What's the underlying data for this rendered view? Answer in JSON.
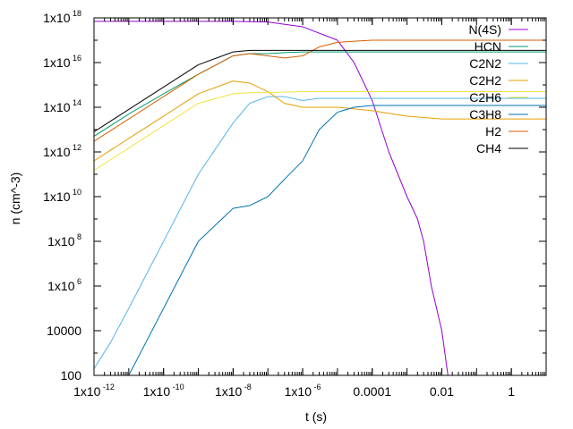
{
  "chart_data": {
    "type": "line",
    "title": "",
    "xlabel": "t (s)",
    "ylabel": "n (cm^-3)",
    "x_scale": "log",
    "y_scale": "log",
    "xlim": [
      1e-12,
      10
    ],
    "ylim": [
      100,
      1e+18
    ],
    "grid": false,
    "legend_position": "top-right",
    "x_ticks": [
      {
        "value": 1e-12,
        "base": "1x10",
        "exp": "-12"
      },
      {
        "value": 1e-10,
        "base": "1x10",
        "exp": "-10"
      },
      {
        "value": 1e-08,
        "base": "1x10",
        "exp": "-8"
      },
      {
        "value": 1e-06,
        "base": "1x10",
        "exp": "-6"
      },
      {
        "value": 0.0001,
        "base": "0.0001",
        "exp": ""
      },
      {
        "value": 0.01,
        "base": "0.01",
        "exp": ""
      },
      {
        "value": 1,
        "base": "1",
        "exp": ""
      }
    ],
    "y_ticks": [
      {
        "value": 1e+18,
        "base": "1x10",
        "exp": "18"
      },
      {
        "value": 1e+16,
        "base": "1x10",
        "exp": "16"
      },
      {
        "value": 100000000000000.0,
        "base": "1x10",
        "exp": "14"
      },
      {
        "value": 1000000000000.0,
        "base": "1x10",
        "exp": "12"
      },
      {
        "value": 10000000000.0,
        "base": "1x10",
        "exp": "10"
      },
      {
        "value": 100000000.0,
        "base": "1x10",
        "exp": "8"
      },
      {
        "value": 1000000.0,
        "base": "1x10",
        "exp": "6"
      },
      {
        "value": 10000,
        "base": "10000",
        "exp": ""
      },
      {
        "value": 100,
        "base": "100",
        "exp": ""
      }
    ],
    "series": [
      {
        "name": "N(4S)",
        "color": "#9400d3",
        "x": [
          1e-12,
          1e-10,
          1e-08,
          1e-07,
          1e-06,
          1e-05,
          3e-05,
          0.0001,
          0.0003,
          0.001,
          0.002,
          0.003,
          0.005,
          0.01,
          0.015
        ],
        "y": [
          7e+17,
          7e+17,
          7e+17,
          6.5e+17,
          4e+17,
          1e+17,
          1e+16,
          200000000000000.0,
          1000000000000.0,
          10000000000.0,
          1000000000.0,
          100000000.0,
          1000000.0,
          10000.0,
          100
        ]
      },
      {
        "name": "HCN",
        "color": "#009e73",
        "x": [
          1e-12,
          1e-11,
          1e-10,
          1e-09,
          1e-08,
          3e-08,
          1e-07,
          3e-07,
          1e-06,
          3e-06,
          1e-05,
          0.001,
          0.1,
          10
        ],
        "y": [
          5000000000000.0,
          50000000000000.0,
          400000000000000.0,
          3000000000000000.0,
          2e+16,
          2.5e+16,
          2.5e+16,
          2.8e+16,
          3e+16,
          3e+16,
          3e+16,
          3e+16,
          3e+16,
          3e+16
        ]
      },
      {
        "name": "C2N2",
        "color": "#56b4e9",
        "x": [
          1e-12,
          3e-12,
          1e-11,
          1e-10,
          1e-09,
          1e-08,
          3e-08,
          1e-07,
          3e-07,
          1e-06,
          3e-06,
          1e-05,
          0.001,
          10
        ],
        "y": [
          200,
          3000,
          100000.0,
          100000000.0,
          100000000000.0,
          20000000000000.0,
          150000000000000.0,
          300000000000000.0,
          300000000000000.0,
          200000000000000.0,
          250000000000000.0,
          250000000000000.0,
          250000000000000.0,
          250000000000000.0
        ]
      },
      {
        "name": "C2H2",
        "color": "#e69f00",
        "x": [
          1e-12,
          1e-11,
          1e-10,
          1e-09,
          1e-08,
          3e-08,
          1e-07,
          3e-07,
          1e-06,
          3e-06,
          1e-05,
          0.0001,
          0.001,
          0.01,
          10
        ],
        "y": [
          400000000000.0,
          4000000000000.0,
          40000000000000.0,
          400000000000000.0,
          1500000000000000.0,
          1200000000000000.0,
          500000000000000.0,
          150000000000000.0,
          100000000000000.0,
          100000000000000.0,
          100000000000000.0,
          70000000000000.0,
          40000000000000.0,
          30000000000000.0,
          30000000000000.0
        ]
      },
      {
        "name": "C2H6",
        "color": "#f0e442",
        "x": [
          1e-12,
          1e-11,
          1e-10,
          1e-09,
          1e-08,
          3e-08,
          1e-07,
          1e-06,
          1e-05,
          0.001,
          10
        ],
        "y": [
          150000000000.0,
          1500000000000.0,
          15000000000000.0,
          150000000000000.0,
          400000000000000.0,
          450000000000000.0,
          450000000000000.0,
          500000000000000.0,
          500000000000000.0,
          500000000000000.0,
          500000000000000.0
        ]
      },
      {
        "name": "C3H8",
        "color": "#0072b2",
        "x": [
          1e-11,
          1e-10,
          1e-09,
          1e-08,
          3e-08,
          1e-07,
          3e-07,
          1e-06,
          3e-06,
          1e-05,
          3e-05,
          0.0001,
          0.001,
          10
        ],
        "y": [
          100,
          100000.0,
          100000000.0,
          3000000000.0,
          4000000000.0,
          10000000000.0,
          60000000000.0,
          400000000000.0,
          10000000000000.0,
          60000000000000.0,
          100000000000000.0,
          120000000000000.0,
          120000000000000.0,
          120000000000000.0
        ]
      },
      {
        "name": "H2",
        "color": "#d55e00",
        "x": [
          1e-12,
          1e-11,
          1e-10,
          1e-09,
          1e-08,
          3e-08,
          1e-07,
          3e-07,
          1e-06,
          3e-06,
          1e-05,
          3e-05,
          0.0001,
          0.001,
          10
        ],
        "y": [
          3000000000000.0,
          30000000000000.0,
          300000000000000.0,
          3000000000000000.0,
          2e+16,
          2.5e+16,
          2e+16,
          1.6e+16,
          2e+16,
          5e+16,
          8e+16,
          9e+16,
          1e+17,
          1e+17,
          1e+17
        ]
      },
      {
        "name": "CH4",
        "color": "#000000",
        "x": [
          1e-12,
          1e-11,
          1e-10,
          1e-09,
          1e-08,
          3e-08,
          1e-07,
          1e-06,
          1e-05,
          0.001,
          10
        ],
        "y": [
          8000000000000.0,
          80000000000000.0,
          800000000000000.0,
          8000000000000000.0,
          3e+16,
          3.5e+16,
          3.5e+16,
          3.5e+16,
          3.5e+16,
          3.5e+16,
          3.5e+16
        ]
      }
    ]
  }
}
